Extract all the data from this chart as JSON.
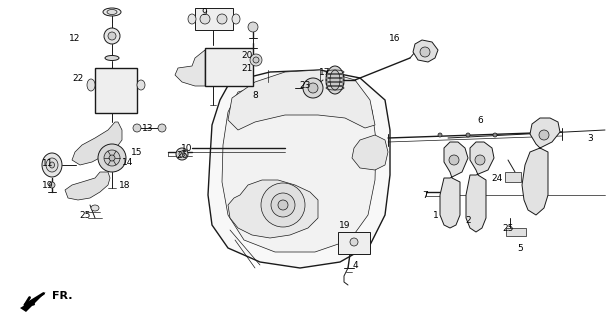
{
  "background_color": "#ffffff",
  "line_color": "#1a1a1a",
  "text_color": "#000000",
  "font_size": 6.5,
  "fig_width": 6.14,
  "fig_height": 3.2,
  "dpi": 100,
  "labels": [
    [
      "9",
      204,
      12
    ],
    [
      "20",
      247,
      55
    ],
    [
      "21",
      247,
      68
    ],
    [
      "8",
      255,
      95
    ],
    [
      "12",
      75,
      38
    ],
    [
      "22",
      78,
      78
    ],
    [
      "13",
      148,
      128
    ],
    [
      "15",
      137,
      152
    ],
    [
      "14",
      128,
      162
    ],
    [
      "11",
      48,
      163
    ],
    [
      "19",
      48,
      185
    ],
    [
      "18",
      125,
      185
    ],
    [
      "25",
      85,
      215
    ],
    [
      "26",
      182,
      155
    ],
    [
      "10",
      187,
      148
    ],
    [
      "17",
      325,
      72
    ],
    [
      "23",
      305,
      85
    ],
    [
      "16",
      395,
      38
    ],
    [
      "6",
      480,
      120
    ],
    [
      "3",
      590,
      138
    ],
    [
      "24",
      497,
      178
    ],
    [
      "1",
      436,
      215
    ],
    [
      "2",
      468,
      220
    ],
    [
      "25",
      508,
      228
    ],
    [
      "5",
      520,
      248
    ],
    [
      "7",
      425,
      195
    ],
    [
      "19",
      345,
      225
    ],
    [
      "4",
      355,
      265
    ]
  ]
}
